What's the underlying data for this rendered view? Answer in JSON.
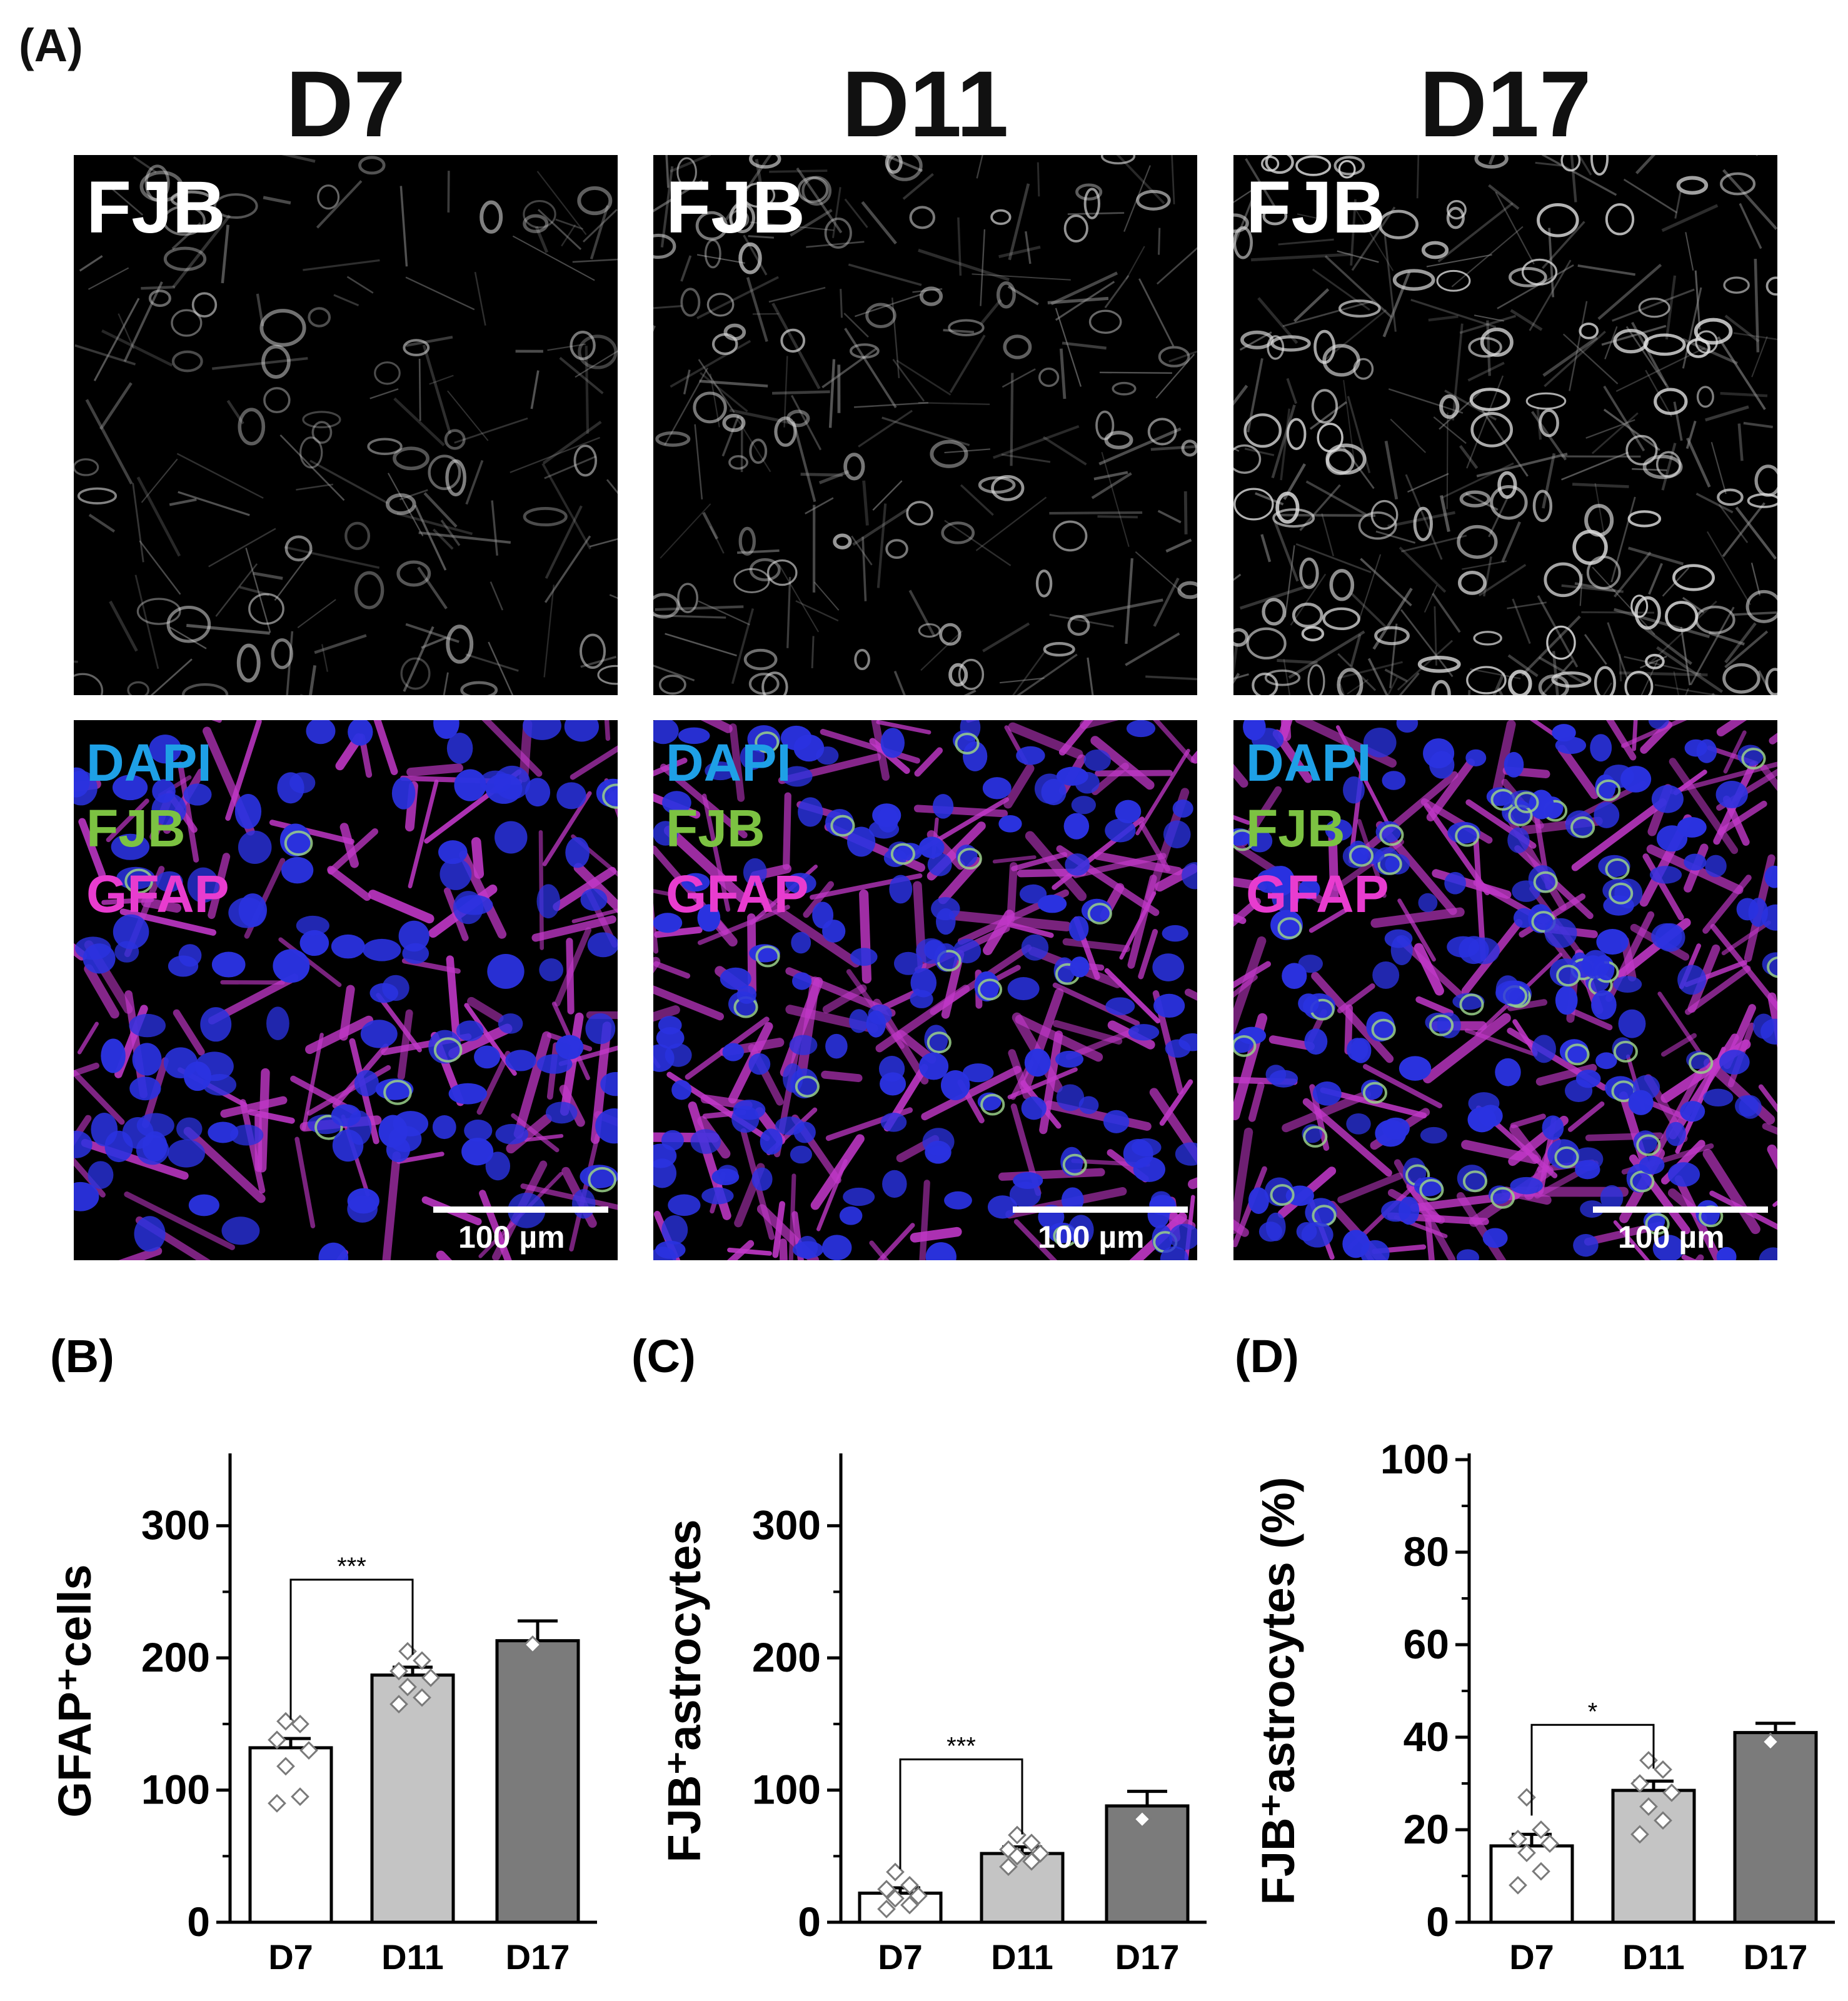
{
  "panel_A": {
    "label": "(A)",
    "columns": [
      {
        "title": "D7",
        "top_label": "FJB",
        "channels": [
          "DAPI",
          "FJB",
          "GFAP"
        ],
        "scale_bar": "100 µm"
      },
      {
        "title": "D11",
        "top_label": "FJB",
        "channels": [
          "DAPI",
          "FJB",
          "GFAP"
        ],
        "scale_bar": "100 µm"
      },
      {
        "title": "D17",
        "top_label": "FJB",
        "channels": [
          "DAPI",
          "FJB",
          "GFAP"
        ],
        "scale_bar": "100 µm"
      }
    ],
    "channel_colors": {
      "DAPI": "#1ea0e6",
      "FJB": "#7cc242",
      "GFAP": "#e83ccf"
    }
  },
  "chart_data": [
    {
      "label": "(B)",
      "type": "bar",
      "categories": [
        "D7",
        "D11",
        "D17"
      ],
      "values": [
        132,
        187,
        213
      ],
      "errors": [
        7,
        6,
        15
      ],
      "points": [
        [
          152,
          150,
          138,
          130,
          118,
          95,
          90
        ],
        [
          205,
          198,
          190,
          185,
          178,
          170,
          165
        ],
        [
          210
        ]
      ],
      "ylabel": "GFAP⁺cells",
      "ylim": [
        0,
        350
      ],
      "yticks": [
        0,
        100,
        200,
        300
      ],
      "significance": [
        {
          "from": 0,
          "to": 1,
          "label": "***"
        }
      ],
      "bar_colors": [
        "#ffffff",
        "#c4c4c4",
        "#7b7b7b"
      ]
    },
    {
      "label": "(C)",
      "type": "bar",
      "categories": [
        "D7",
        "D11",
        "D17"
      ],
      "values": [
        22,
        52,
        88
      ],
      "errors": [
        4,
        5,
        11
      ],
      "points": [
        [
          38,
          28,
          25,
          20,
          18,
          13,
          10
        ],
        [
          66,
          60,
          55,
          52,
          50,
          46,
          42
        ],
        [
          78
        ]
      ],
      "ylabel": "FJB⁺astrocytes",
      "ylim": [
        0,
        350
      ],
      "yticks": [
        0,
        100,
        200,
        300
      ],
      "significance": [
        {
          "from": 0,
          "to": 1,
          "label": "***"
        }
      ],
      "bar_colors": [
        "#ffffff",
        "#c4c4c4",
        "#7b7b7b"
      ]
    },
    {
      "label": "(D)",
      "type": "bar",
      "categories": [
        "D7",
        "D11",
        "D17"
      ],
      "values": [
        16.5,
        28.5,
        41
      ],
      "errors": [
        2.5,
        2,
        2
      ],
      "points": [
        [
          27,
          20,
          18,
          17,
          15,
          11,
          8
        ],
        [
          35,
          33,
          30,
          28,
          25,
          22,
          19
        ],
        [
          39
        ]
      ],
      "ylabel": "FJB⁺astrocytes (%)",
      "ylim": [
        0,
        100
      ],
      "yticks": [
        0,
        20,
        40,
        60,
        80,
        100
      ],
      "significance": [
        {
          "from": 0,
          "to": 1,
          "label": "*"
        }
      ],
      "bar_colors": [
        "#ffffff",
        "#c4c4c4",
        "#7b7b7b"
      ]
    }
  ]
}
